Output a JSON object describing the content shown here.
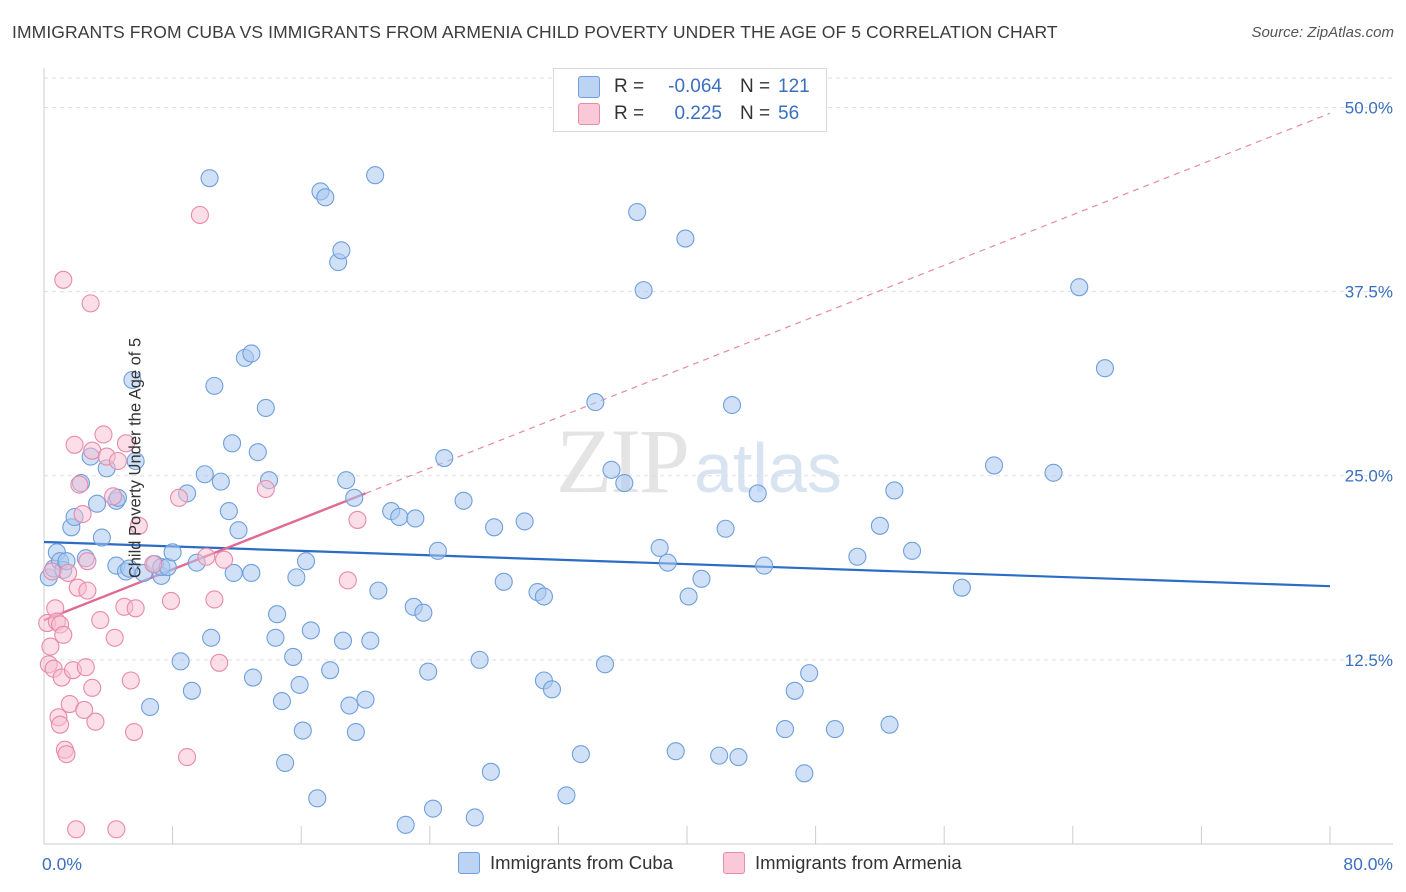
{
  "title": "IMMIGRANTS FROM CUBA VS IMMIGRANTS FROM ARMENIA CHILD POVERTY UNDER THE AGE OF 5 CORRELATION CHART",
  "source": "Source: ZipAtlas.com",
  "watermark": {
    "zip": "ZIP",
    "atlas": "atlas"
  },
  "legend": {
    "rows": [
      {
        "r_label": "R =",
        "r_value": "-0.064",
        "n_label": "N =",
        "n_value": "121"
      },
      {
        "r_label": "R =",
        "r_value": "0.225",
        "n_label": "N =",
        "n_value": "56"
      }
    ]
  },
  "colors": {
    "cuba_fill": "#aac8f0",
    "cuba_stroke": "#6f9fdc",
    "cuba_line": "#2b6cc4",
    "armenia_fill": "#f7bdd0",
    "armenia_stroke": "#e88aaa",
    "armenia_line": "#e06a92",
    "tick_label": "#3a6fc0",
    "grid": "#dddddd"
  },
  "chart_data": {
    "type": "scatter",
    "title": "IMMIGRANTS FROM CUBA VS IMMIGRANTS FROM ARMENIA CHILD POVERTY UNDER THE AGE OF 5 CORRELATION CHART",
    "xlabel": "",
    "ylabel": "Child Poverty Under the Age of 5",
    "xlim": [
      0,
      80
    ],
    "ylim": [
      0,
      52
    ],
    "x_tick_labels": [
      "0.0%",
      "80.0%"
    ],
    "y_ticks": [
      12.5,
      25.0,
      37.5,
      50.0
    ],
    "y_tick_labels": [
      "12.5%",
      "25.0%",
      "37.5%",
      "50.0%"
    ],
    "series": [
      {
        "name": "Immigrants from Cuba",
        "r": -0.064,
        "n": 121,
        "trend": {
          "x0": 0,
          "y0": 20.5,
          "x1": 80,
          "y1": 17.5
        },
        "points": [
          [
            0.3,
            18.1
          ],
          [
            0.6,
            18.7
          ],
          [
            0.8,
            19.8
          ],
          [
            1.0,
            19.2
          ],
          [
            1.2,
            18.6
          ],
          [
            1.4,
            19.2
          ],
          [
            1.7,
            21.5
          ],
          [
            1.9,
            22.2
          ],
          [
            2.3,
            24.5
          ],
          [
            2.6,
            19.4
          ],
          [
            2.9,
            26.3
          ],
          [
            3.3,
            23.1
          ],
          [
            3.6,
            20.8
          ],
          [
            3.9,
            25.5
          ],
          [
            4.5,
            23.3
          ],
          [
            4.5,
            18.9
          ],
          [
            4.6,
            23.5
          ],
          [
            5.1,
            18.5
          ],
          [
            5.5,
            31.5
          ],
          [
            5.7,
            26.0
          ],
          [
            5.3,
            18.7
          ],
          [
            6.2,
            18.4
          ],
          [
            6.6,
            9.3
          ],
          [
            6.9,
            19.0
          ],
          [
            7.3,
            18.2
          ],
          [
            7.3,
            18.8
          ],
          [
            7.7,
            18.8
          ],
          [
            8.0,
            19.8
          ],
          [
            8.5,
            12.4
          ],
          [
            8.9,
            23.8
          ],
          [
            9.2,
            10.4
          ],
          [
            9.5,
            19.1
          ],
          [
            10.0,
            25.1
          ],
          [
            10.3,
            45.2
          ],
          [
            10.4,
            14.0
          ],
          [
            10.6,
            31.1
          ],
          [
            11.0,
            24.6
          ],
          [
            11.5,
            22.6
          ],
          [
            11.7,
            27.2
          ],
          [
            11.8,
            18.4
          ],
          [
            12.1,
            21.3
          ],
          [
            12.5,
            33.0
          ],
          [
            12.9,
            33.3
          ],
          [
            12.9,
            18.4
          ],
          [
            13.0,
            11.3
          ],
          [
            13.3,
            26.6
          ],
          [
            13.8,
            29.6
          ],
          [
            14.0,
            24.7
          ],
          [
            14.5,
            15.6
          ],
          [
            14.4,
            14.0
          ],
          [
            14.8,
            9.7
          ],
          [
            15.0,
            5.5
          ],
          [
            15.5,
            12.7
          ],
          [
            15.7,
            18.1
          ],
          [
            15.9,
            10.8
          ],
          [
            16.1,
            7.7
          ],
          [
            16.3,
            19.2
          ],
          [
            16.6,
            14.5
          ],
          [
            17.0,
            3.1
          ],
          [
            17.2,
            44.3
          ],
          [
            17.5,
            43.9
          ],
          [
            17.8,
            11.8
          ],
          [
            18.3,
            39.5
          ],
          [
            18.5,
            40.3
          ],
          [
            18.6,
            13.8
          ],
          [
            18.8,
            24.7
          ],
          [
            19.0,
            9.4
          ],
          [
            19.3,
            23.5
          ],
          [
            19.4,
            7.6
          ],
          [
            20.0,
            9.8
          ],
          [
            20.3,
            13.8
          ],
          [
            20.6,
            45.4
          ],
          [
            20.8,
            17.2
          ],
          [
            21.6,
            22.6
          ],
          [
            22.1,
            22.2
          ],
          [
            22.5,
            1.3
          ],
          [
            23.1,
            22.1
          ],
          [
            23.0,
            16.1
          ],
          [
            23.6,
            15.7
          ],
          [
            23.9,
            11.7
          ],
          [
            24.2,
            2.4
          ],
          [
            24.5,
            19.9
          ],
          [
            24.9,
            26.2
          ],
          [
            26.1,
            23.3
          ],
          [
            26.8,
            1.8
          ],
          [
            27.1,
            12.5
          ],
          [
            27.8,
            4.9
          ],
          [
            28.0,
            21.5
          ],
          [
            28.6,
            17.8
          ],
          [
            29.9,
            21.9
          ],
          [
            30.7,
            17.1
          ],
          [
            31.1,
            16.8
          ],
          [
            31.1,
            11.1
          ],
          [
            31.6,
            10.5
          ],
          [
            32.5,
            3.3
          ],
          [
            33.4,
            6.1
          ],
          [
            34.3,
            30.0
          ],
          [
            34.9,
            12.2
          ],
          [
            35.3,
            25.4
          ],
          [
            36.1,
            24.5
          ],
          [
            36.9,
            42.9
          ],
          [
            37.3,
            37.6
          ],
          [
            38.3,
            20.1
          ],
          [
            38.8,
            19.1
          ],
          [
            39.3,
            6.3
          ],
          [
            39.9,
            41.1
          ],
          [
            40.1,
            16.8
          ],
          [
            40.9,
            18.0
          ],
          [
            42.0,
            6.0
          ],
          [
            42.8,
            29.8
          ],
          [
            42.4,
            21.4
          ],
          [
            43.2,
            5.9
          ],
          [
            44.4,
            23.8
          ],
          [
            44.8,
            18.9
          ],
          [
            46.1,
            7.8
          ],
          [
            46.7,
            10.4
          ],
          [
            47.3,
            4.8
          ],
          [
            47.6,
            11.6
          ],
          [
            49.2,
            7.8
          ],
          [
            50.6,
            19.5
          ],
          [
            52.0,
            21.6
          ],
          [
            52.6,
            8.1
          ],
          [
            52.9,
            24.0
          ],
          [
            54.0,
            19.9
          ],
          [
            57.1,
            17.4
          ],
          [
            59.1,
            25.7
          ],
          [
            62.8,
            25.2
          ],
          [
            64.4,
            37.8
          ],
          [
            66.0,
            32.3
          ]
        ]
      },
      {
        "name": "Immigrants from Armenia",
        "r": 0.225,
        "n": 56,
        "trend": {
          "x0": 0,
          "y0": 15.2,
          "x1": 20,
          "y1": 23.8
        },
        "dashed_extension": {
          "x0": 20,
          "y0": 23.8,
          "x1": 80,
          "y1": 49.6
        },
        "points": [
          [
            0.2,
            15.0
          ],
          [
            0.3,
            12.2
          ],
          [
            0.4,
            13.4
          ],
          [
            0.5,
            18.5
          ],
          [
            0.6,
            11.9
          ],
          [
            0.7,
            16.0
          ],
          [
            0.8,
            15.1
          ],
          [
            0.9,
            8.6
          ],
          [
            1.0,
            8.1
          ],
          [
            1.0,
            14.9
          ],
          [
            1.1,
            11.3
          ],
          [
            1.2,
            14.2
          ],
          [
            1.2,
            38.3
          ],
          [
            1.3,
            6.4
          ],
          [
            1.4,
            6.1
          ],
          [
            1.5,
            18.4
          ],
          [
            1.6,
            9.5
          ],
          [
            1.8,
            11.8
          ],
          [
            1.9,
            27.1
          ],
          [
            2.0,
            1.0
          ],
          [
            2.1,
            17.4
          ],
          [
            2.2,
            24.4
          ],
          [
            2.4,
            22.4
          ],
          [
            2.5,
            9.1
          ],
          [
            2.6,
            12.0
          ],
          [
            2.7,
            19.2
          ],
          [
            2.7,
            17.2
          ],
          [
            2.9,
            36.7
          ],
          [
            3.0,
            26.7
          ],
          [
            3.0,
            10.6
          ],
          [
            3.2,
            8.3
          ],
          [
            3.5,
            15.2
          ],
          [
            3.7,
            27.8
          ],
          [
            3.9,
            26.3
          ],
          [
            4.3,
            23.6
          ],
          [
            4.4,
            14.0
          ],
          [
            4.5,
            1.0
          ],
          [
            4.6,
            26.0
          ],
          [
            5.0,
            16.1
          ],
          [
            5.1,
            27.2
          ],
          [
            5.4,
            11.1
          ],
          [
            5.6,
            7.6
          ],
          [
            5.7,
            16.0
          ],
          [
            5.9,
            21.6
          ],
          [
            6.8,
            19.0
          ],
          [
            7.9,
            16.5
          ],
          [
            8.4,
            23.5
          ],
          [
            8.9,
            5.9
          ],
          [
            9.7,
            42.7
          ],
          [
            10.1,
            19.5
          ],
          [
            10.6,
            16.6
          ],
          [
            10.9,
            12.3
          ],
          [
            11.2,
            19.3
          ],
          [
            13.8,
            24.1
          ],
          [
            18.9,
            17.9
          ],
          [
            19.5,
            22.0
          ]
        ]
      }
    ]
  },
  "bottom_legend": {
    "cuba": "Immigrants from Cuba",
    "armenia": "Immigrants from Armenia"
  }
}
